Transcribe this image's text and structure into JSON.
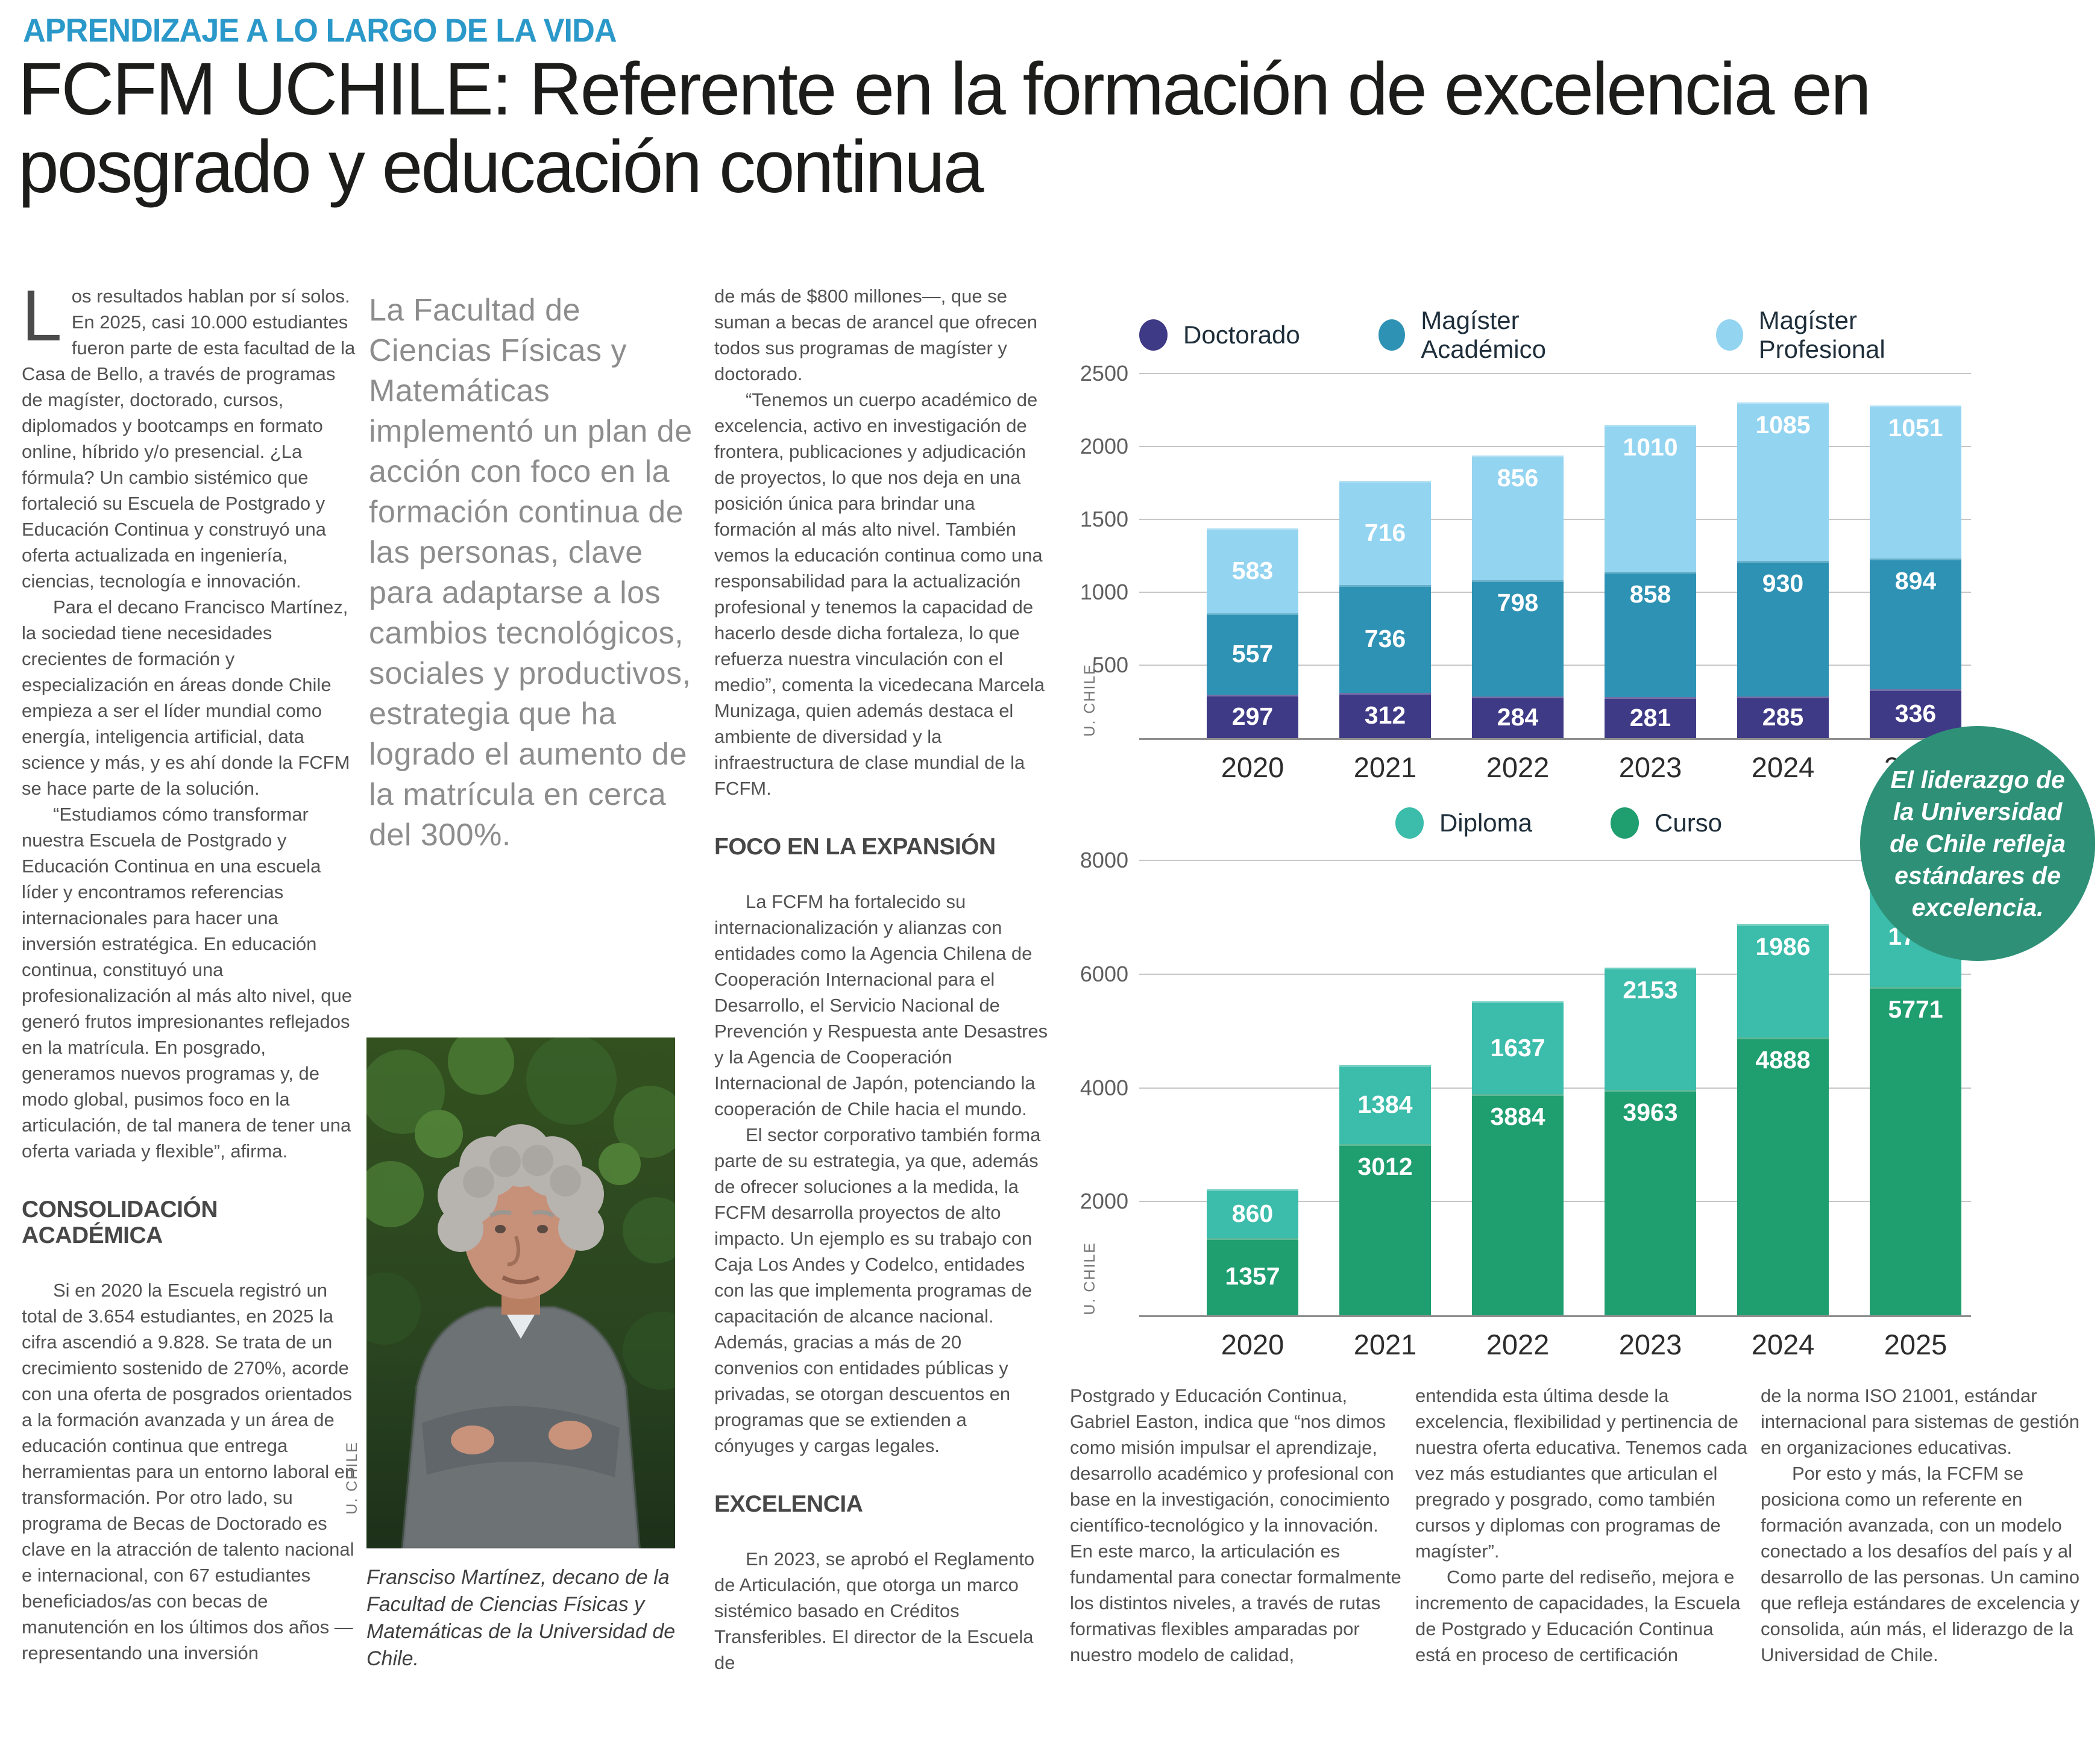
{
  "page": {
    "kicker": "APRENDIZAJE A LO LARGO DE LA VIDA",
    "headline": "FCFM UCHILE: Referente en la formación de excelencia en posgrado y educación continua"
  },
  "article": {
    "col1": {
      "dropcap": "L",
      "p1": "os resultados hablan por sí solos. En 2025, casi 10.000 estudiantes fueron parte de esta facultad de la Casa de Bello, a través de programas de magíster, doctorado, cursos, diplomados y bootcamps en formato online, híbrido y/o presencial. ¿La fórmula? Un cambio sistémico que fortaleció su Escuela de Postgrado y Educación Continua y construyó una oferta actualizada en ingeniería, ciencias, tecnología e innovación.",
      "p2": "Para el decano Francisco Martínez, la sociedad tiene necesidades crecientes de formación y especialización en áreas donde Chile empieza a ser el líder mundial como energía, inteligencia artificial, data science y más, y es ahí donde la FCFM se hace parte de la solución.",
      "p3": "“Estudiamos cómo transformar nuestra Escuela de Postgrado y Educación Continua en una escuela líder y encontramos referencias internacionales para hacer una inversión estratégica. En educación continua, constituyó una profesionalización al más alto nivel, que generó frutos impresionantes reflejados en la matrícula. En posgrado, generamos nuevos programas y, de modo global, pusimos foco en la articulación, de tal manera de tener una oferta variada y flexible”, afirma.",
      "heading": "CONSOLIDACIÓN ACADÉMICA",
      "p4": "Si en 2020 la Escuela registró un total de 3.654 estudiantes, en 2025 la cifra ascendió a 9.828. Se trata de un crecimiento sostenido de 270%, acorde con una oferta de posgrados orientados a la formación avanzada y un área de educación continua que entrega herramientas para un entorno laboral en transformación. Por otro lado, su programa de Becas de Doctorado es clave en la atracción de talento nacional e internacional, con 67 estudiantes beneficiados/as con becas de manutención en los últimos dos años —representando una inversión"
    },
    "pullquote": "La Facultad de Ciencias Físicas y Matemáticas implementó un plan de acción con foco en la formación continua de las personas, clave para adaptarse a los cambios tecnológicos, sociales y productivos, estrategia que ha logrado el aumento de la matrícula en cerca del 300%.",
    "photo": {
      "caption": "Fransciso Martínez, decano de la Facultad de Ciencias Físicas y Matemáticas de la Universidad de Chile.",
      "credit": "U. CHILE"
    },
    "col3": {
      "p1": "de más de $800 millones—, que se suman a becas de arancel que ofrecen todos sus programas de magíster y doctorado.",
      "p2": "“Tenemos un cuerpo académico de excelencia, activo en investigación de frontera, publicaciones y adjudicación de proyectos, lo que nos deja en una posición única para brindar una formación al más alto nivel. También vemos la educación continua como una responsabilidad para la actualización profesional y tenemos la capacidad de hacerlo desde dicha fortaleza, lo que refuerza nuestra vinculación con el medio”, comenta la vicedecana Marcela Munizaga, quien además destaca el ambiente de diversidad y la infraestructura de clase mundial de la FCFM.",
      "heading1": "FOCO EN LA EXPANSIÓN",
      "p3": "La FCFM ha fortalecido su internacionalización y alianzas con entidades como la Agencia Chilena de Cooperación Internacional para el Desarrollo, el Servicio Nacional de Prevención y Respuesta ante Desastres y la Agencia de Cooperación Internacional de Japón, potenciando la cooperación de Chile hacia el mundo.",
      "p4": "El sector corporativo también forma parte de su estrategia, ya que, además de ofrecer soluciones a la medida, la FCFM desarrolla proyectos de alto impacto. Un ejemplo es su trabajo con Caja Los Andes y Codelco, entidades con las que implementa programas de capacitación de alcance nacional. Además, gracias a más de 20 convenios con entidades públicas y privadas, se otorgan descuentos en programas que se extienden a cónyuges y cargas legales.",
      "heading2": "EXCELENCIA",
      "p5": "En 2023, se aprobó el Reglamento de Articulación, que otorga un marco sistémico basado en Créditos Transferibles. El director de la Escuela de"
    },
    "col4": {
      "p1": "Postgrado y Educación Continua, Gabriel Easton, indica que “nos dimos como misión impulsar el aprendizaje, desarrollo académico y profesional con base en la investigación, conocimiento científico-tecnológico y la innovación. En este marco, la articulación es fundamental para conectar formalmente los distintos niveles, a través de rutas formativas flexibles amparadas por nuestro modelo de calidad,"
    },
    "col5": {
      "p1": "entendida esta última desde la excelencia, flexibilidad y pertinencia de nuestra oferta educativa. Tenemos cada vez más estudiantes que articulan el pregrado y posgrado, como también cursos y diplomas con programas de magíster”.",
      "p2": "Como parte del rediseño, mejora e incremento de capacidades, la Escuela de Postgrado y Educación Continua está en proceso de certificación"
    },
    "col6": {
      "p1": "de la norma ISO 21001, estándar internacional para sistemas de gestión en organizaciones educativas.",
      "p2": "Por esto y más, la FCFM se posiciona como un referente en formación avanzada, con un modelo conectado a los desafíos del país y al desarrollo de las personas. Un camino que refleja estándares de excelencia y consolida, aún más, el liderazgo de la Universidad de Chile."
    }
  },
  "badge": {
    "text": "El liderazgo de la Universidad de Chile refleja estándares de excelencia.",
    "color": "#2d9077"
  },
  "chart_data": [
    {
      "type": "bar",
      "stacked": true,
      "title": "",
      "categories": [
        "2020",
        "2021",
        "2022",
        "2023",
        "2024",
        "2025"
      ],
      "series": [
        {
          "name": "Doctorado",
          "color": "#3f3a86",
          "values": [
            297,
            312,
            284,
            281,
            285,
            336
          ]
        },
        {
          "name": "Magíster Académico",
          "color": "#2e92b4",
          "values": [
            557,
            736,
            798,
            858,
            930,
            894
          ]
        },
        {
          "name": "Magíster Profesional",
          "color": "#93d4f1",
          "values": [
            583,
            716,
            856,
            1010,
            1085,
            1051
          ]
        }
      ],
      "legend": [
        "Doctorado",
        "Magíster Académico",
        "Magíster Profesional"
      ],
      "legend_position": "top",
      "grid": true,
      "ylim": [
        0,
        2500
      ],
      "yticks": [
        500,
        1000,
        1500,
        2000,
        2500
      ],
      "credit": "U. CHILE"
    },
    {
      "type": "bar",
      "stacked": true,
      "title": "",
      "categories": [
        "2020",
        "2021",
        "2022",
        "2023",
        "2024",
        "2025"
      ],
      "series": [
        {
          "name": "Curso",
          "color": "#1f9e6f",
          "values": [
            1357,
            3012,
            3884,
            3963,
            4888,
            5771
          ]
        },
        {
          "name": "Diploma",
          "color": "#3cbcaa",
          "values": [
            860,
            1384,
            1637,
            2153,
            1986,
            1776
          ]
        }
      ],
      "legend": [
        "Diploma",
        "Curso"
      ],
      "legend_position": "top",
      "grid": true,
      "ylim": [
        0,
        8000
      ],
      "yticks": [
        2000,
        4000,
        6000,
        8000
      ],
      "credit": "U. CHILE"
    }
  ]
}
